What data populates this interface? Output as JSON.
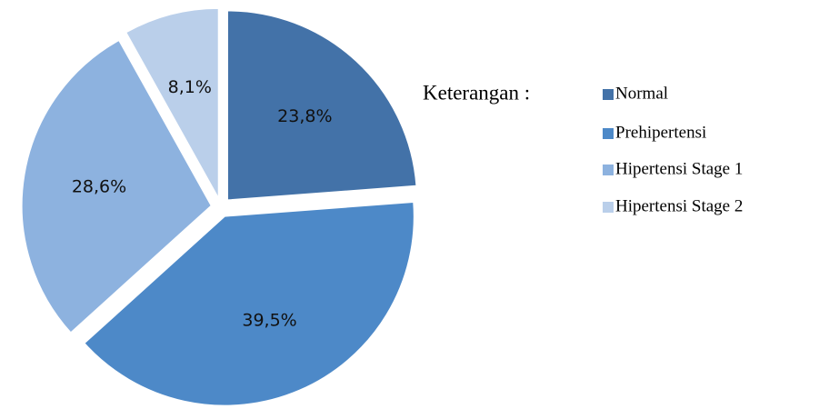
{
  "chart_data": {
    "type": "pie",
    "legend_title": "Keterangan :",
    "categories": [
      "Normal",
      "Prehipertensi",
      "Hipertensi Stage 1",
      "Hipertensi Stage 2"
    ],
    "values": [
      23.8,
      39.5,
      28.6,
      8.1
    ],
    "value_labels": [
      "23,8%",
      "39,5%",
      "28,6%",
      "8,1%"
    ],
    "colors": [
      "#4372a8",
      "#4d89c8",
      "#8db2df",
      "#bacfea"
    ],
    "legend": "right"
  }
}
